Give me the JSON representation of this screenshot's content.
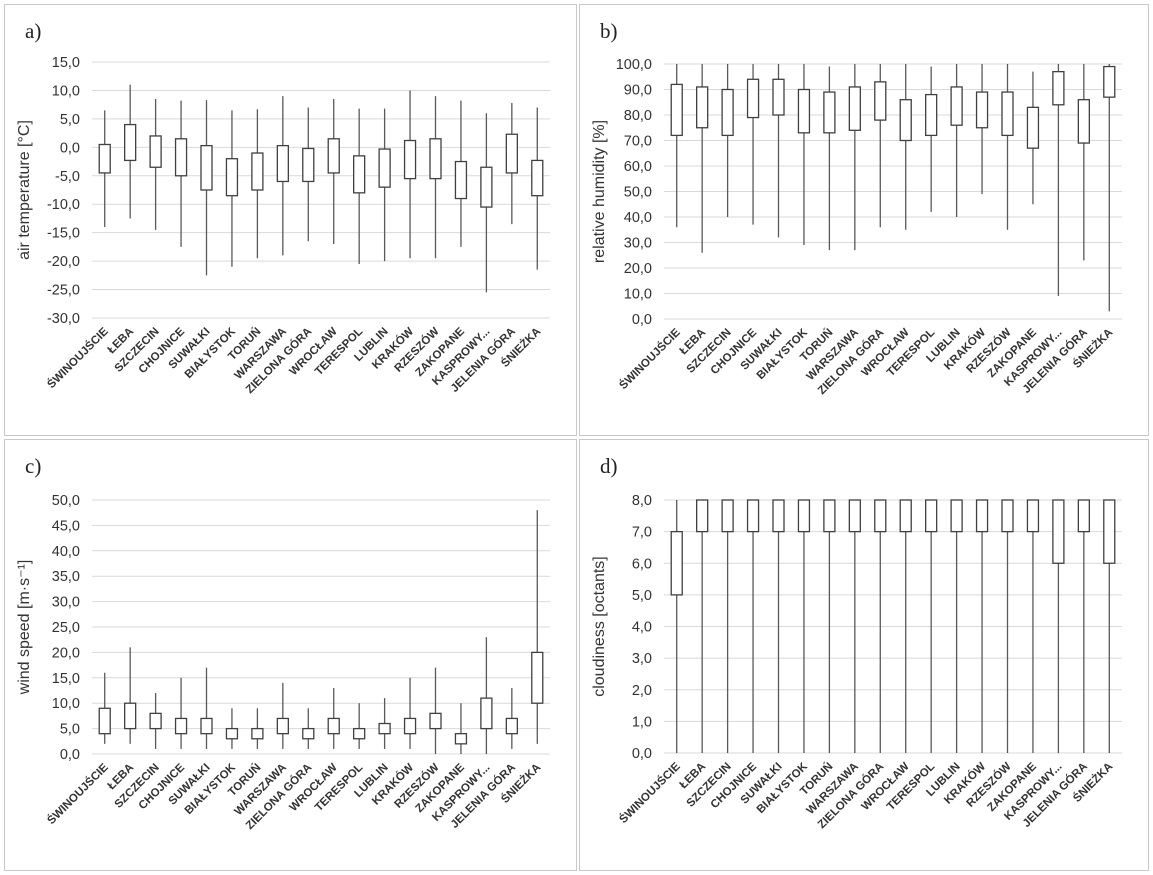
{
  "stations": [
    "ŚWINOUJŚCIE",
    "ŁEBA",
    "SZCZECIN",
    "CHOJNICE",
    "SUWAŁKI",
    "BIAŁYSTOK",
    "TORUŃ",
    "WARSZAWA",
    "ZIELONA GÓRA",
    "WROCŁAW",
    "TERESPOL",
    "LUBLIN",
    "KRAKÓW",
    "RZESZÓW",
    "ZAKOPANE",
    "KASPROWY...",
    "JELENIA GÓRA",
    "ŚNIEŻKA"
  ],
  "panels": [
    {
      "label": "a)",
      "ylabel": "air temperature [°C]"
    },
    {
      "label": "b)",
      "ylabel": "relative humidity [%]"
    },
    {
      "label": "c)",
      "ylabel": "wind speed [m·s⁻¹]"
    },
    {
      "label": "d)",
      "ylabel": "cloudiness [octants]"
    }
  ],
  "chart_data": [
    {
      "type": "boxplot",
      "ylabel": "air temperature [°C]",
      "ylim": [
        -30,
        15
      ],
      "yticks": [
        "15,0",
        "10,0",
        "5,0",
        "0,0",
        "-5,0",
        "-10,0",
        "-15,0",
        "-20,0",
        "-25,0",
        "-30,0"
      ],
      "categories": [
        "ŚWINOUJŚCIE",
        "ŁEBA",
        "SZCZECIN",
        "CHOJNICE",
        "SUWAŁKI",
        "BIAŁYSTOK",
        "TORUŃ",
        "WARSZAWA",
        "ZIELONA GÓRA",
        "WROCŁAW",
        "TERESPOL",
        "LUBLIN",
        "KRAKÓW",
        "RZESZÓW",
        "ZAKOPANE",
        "KASPROWY...",
        "JELENIA GÓRA",
        "ŚNIEŻKA"
      ],
      "min": [
        -14,
        -12.5,
        -14.5,
        -17.5,
        -22.5,
        -21,
        -19.5,
        -19,
        -16.5,
        -17,
        -20.5,
        -20,
        -19.5,
        -19.5,
        -17.5,
        -25.5,
        -13.5,
        -21.5
      ],
      "q1": [
        -4.5,
        -2.3,
        -3.5,
        -5,
        -7.5,
        -8.5,
        -7.5,
        -6,
        -6,
        -4.5,
        -8,
        -7,
        -5.5,
        -5.5,
        -9,
        -10.5,
        -4.5,
        -8.5
      ],
      "q3": [
        0.5,
        4,
        2,
        1.5,
        0.3,
        -2,
        -1,
        0.3,
        -0.2,
        1.5,
        -1.5,
        -0.3,
        1.2,
        1.5,
        -2.5,
        -3.5,
        2.3,
        -2.3
      ],
      "max": [
        6.5,
        11,
        8.5,
        8.2,
        8.3,
        6.5,
        6.7,
        9,
        7,
        8.5,
        6.8,
        6.8,
        10,
        9,
        8.2,
        6,
        7.8,
        7
      ]
    },
    {
      "type": "boxplot",
      "ylabel": "relative humidity [%]",
      "ylim": [
        0,
        100
      ],
      "yticks": [
        "100,0",
        "90,0",
        "80,0",
        "70,0",
        "60,0",
        "50,0",
        "40,0",
        "30,0",
        "20,0",
        "10,0",
        "0,0"
      ],
      "categories": [
        "ŚWINOUJŚCIE",
        "ŁEBA",
        "SZCZECIN",
        "CHOJNICE",
        "SUWAŁKI",
        "BIAŁYSTOK",
        "TORUŃ",
        "WARSZAWA",
        "ZIELONA GÓRA",
        "WROCŁAW",
        "TERESPOL",
        "LUBLIN",
        "KRAKÓW",
        "RZESZÓW",
        "ZAKOPANE",
        "KASPROWY...",
        "JELENIA GÓRA",
        "ŚNIEŻKA"
      ],
      "min": [
        36,
        26,
        40,
        37,
        32,
        29,
        27,
        27,
        36,
        35,
        42,
        40,
        49,
        35,
        45,
        9,
        23,
        3
      ],
      "q1": [
        72,
        75,
        72,
        79,
        80,
        73,
        73,
        74,
        78,
        70,
        72,
        76,
        75,
        72,
        67,
        84,
        69,
        87
      ],
      "q3": [
        92,
        91,
        90,
        94,
        94,
        90,
        89,
        91,
        93,
        86,
        88,
        91,
        89,
        89,
        83,
        97,
        86,
        99
      ],
      "max": [
        100,
        100,
        100,
        100,
        100,
        100,
        99,
        100,
        100,
        100,
        99,
        100,
        100,
        100,
        97,
        100,
        100,
        100
      ]
    },
    {
      "type": "boxplot",
      "ylabel": "wind speed [m·s⁻¹]",
      "ylim": [
        0,
        50
      ],
      "yticks": [
        "50,0",
        "45,0",
        "40,0",
        "35,0",
        "30,0",
        "25,0",
        "20,0",
        "15,0",
        "10,0",
        "5,0",
        "0,0"
      ],
      "categories": [
        "ŚWINOUJŚCIE",
        "ŁEBA",
        "SZCZECIN",
        "CHOJNICE",
        "SUWAŁKI",
        "BIAŁYSTOK",
        "TORUŃ",
        "WARSZAWA",
        "ZIELONA GÓRA",
        "WROCŁAW",
        "TERESPOL",
        "LUBLIN",
        "KRAKÓW",
        "RZESZÓW",
        "ZAKOPANE",
        "KASPROWY...",
        "JELENIA GÓRA",
        "ŚNIEŻKA"
      ],
      "min": [
        2,
        2,
        1,
        1,
        1,
        1,
        1,
        1,
        1,
        1,
        1,
        1,
        1,
        0,
        0,
        0,
        1,
        2
      ],
      "q1": [
        4,
        5,
        5,
        4,
        4,
        3,
        3,
        4,
        3,
        4,
        3,
        4,
        4,
        5,
        2,
        5,
        4,
        10
      ],
      "q3": [
        9,
        10,
        8,
        7,
        7,
        5,
        5,
        7,
        5,
        7,
        5,
        6,
        7,
        8,
        4,
        11,
        7,
        20
      ],
      "max": [
        16,
        21,
        12,
        15,
        17,
        9,
        9,
        14,
        9,
        13,
        10,
        11,
        15,
        17,
        10,
        23,
        13,
        48
      ]
    },
    {
      "type": "boxplot",
      "ylabel": "cloudiness [octants]",
      "ylim": [
        0,
        8
      ],
      "yticks": [
        "8,0",
        "7,0",
        "6,0",
        "5,0",
        "4,0",
        "3,0",
        "2,0",
        "1,0",
        "0,0"
      ],
      "categories": [
        "ŚWINOUJŚCIE",
        "ŁEBA",
        "SZCZECIN",
        "CHOJNICE",
        "SUWAŁKI",
        "BIAŁYSTOK",
        "TORUŃ",
        "WARSZAWA",
        "ZIELONA GÓRA",
        "WROCŁAW",
        "TERESPOL",
        "LUBLIN",
        "KRAKÓW",
        "RZESZÓW",
        "ZAKOPANE",
        "KASPROWY...",
        "JELENIA GÓRA",
        "ŚNIEŻKA"
      ],
      "min": [
        0,
        0,
        0,
        0,
        0,
        0,
        0,
        0,
        0,
        0,
        0,
        0,
        0,
        0,
        0,
        0,
        0,
        0
      ],
      "q1": [
        5,
        7,
        7,
        7,
        7,
        7,
        7,
        7,
        7,
        7,
        7,
        7,
        7,
        7,
        7,
        6,
        7,
        6
      ],
      "q3": [
        7,
        8,
        8,
        8,
        8,
        8,
        8,
        8,
        8,
        8,
        8,
        8,
        8,
        8,
        8,
        8,
        8,
        8
      ],
      "max": [
        8,
        8,
        8,
        8,
        8,
        8,
        8,
        8,
        8,
        8,
        8,
        8,
        8,
        8,
        8,
        8,
        8,
        8
      ]
    }
  ]
}
